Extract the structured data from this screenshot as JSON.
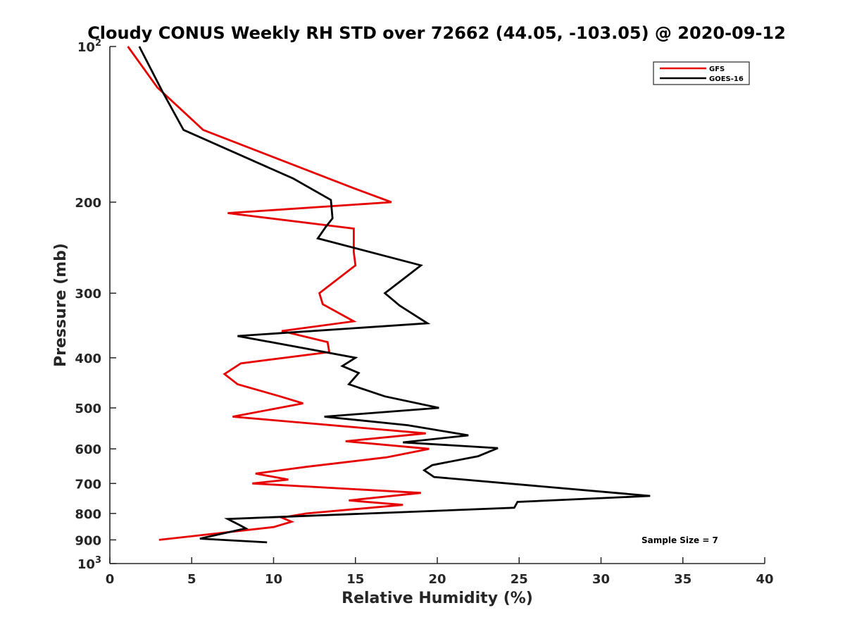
{
  "chart_data": {
    "type": "line",
    "title": "Cloudy CONUS Weekly RH STD over 72662 (44.05, -103.05) @ 2020-09-12",
    "xlabel": "Relative Humidity (%)",
    "ylabel": "Pressure (mb)",
    "xlim": [
      0,
      40
    ],
    "ylim": [
      100,
      1000
    ],
    "y_scale": "log",
    "y_reversed": true,
    "x_ticks": [
      "0",
      "5",
      "10",
      "15",
      "20",
      "25",
      "30",
      "35",
      "40"
    ],
    "y_ticks": [
      {
        "value": 100,
        "base": "10",
        "exp": "2"
      },
      {
        "value": 200,
        "label": "200"
      },
      {
        "value": 300,
        "label": "300"
      },
      {
        "value": 400,
        "label": "400"
      },
      {
        "value": 500,
        "label": "500"
      },
      {
        "value": 600,
        "label": "600"
      },
      {
        "value": 700,
        "label": "700"
      },
      {
        "value": 800,
        "label": "800"
      },
      {
        "value": 900,
        "label": "900"
      },
      {
        "value": 1000,
        "base": "10",
        "exp": "3"
      }
    ],
    "grid": false,
    "legend_position": "top-right",
    "annotation": "Sample Size = 7",
    "series": [
      {
        "name": "GFS",
        "color": "#e60000",
        "points": [
          [
            1.1,
            100
          ],
          [
            2.9,
            120
          ],
          [
            5.7,
            145
          ],
          [
            14.9,
            188
          ],
          [
            17.2,
            200
          ],
          [
            7.2,
            210
          ],
          [
            14.9,
            225
          ],
          [
            14.9,
            250
          ],
          [
            15.0,
            265
          ],
          [
            12.8,
            300
          ],
          [
            13.0,
            315
          ],
          [
            14.9,
            340
          ],
          [
            10.5,
            355
          ],
          [
            13.3,
            373
          ],
          [
            13.4,
            390
          ],
          [
            8.0,
            410
          ],
          [
            7.0,
            430
          ],
          [
            7.8,
            450
          ],
          [
            10.4,
            475
          ],
          [
            11.8,
            490
          ],
          [
            7.5,
            520
          ],
          [
            19.3,
            560
          ],
          [
            14.4,
            580
          ],
          [
            19.5,
            600
          ],
          [
            16.9,
            623
          ],
          [
            12.0,
            650
          ],
          [
            8.9,
            670
          ],
          [
            10.9,
            688
          ],
          [
            8.7,
            700
          ],
          [
            19.0,
            730
          ],
          [
            14.6,
            755
          ],
          [
            17.9,
            770
          ],
          [
            12.0,
            800
          ],
          [
            10.5,
            815
          ],
          [
            11.1,
            830
          ],
          [
            10.0,
            850
          ],
          [
            3.0,
            900
          ]
        ]
      },
      {
        "name": "GOES-16",
        "color": "#000000",
        "points": [
          [
            1.8,
            100
          ],
          [
            3.2,
            122
          ],
          [
            4.5,
            145
          ],
          [
            11.2,
            180
          ],
          [
            13.5,
            198
          ],
          [
            13.6,
            215
          ],
          [
            13.2,
            223
          ],
          [
            12.7,
            235
          ],
          [
            19.0,
            265
          ],
          [
            17.9,
            282
          ],
          [
            16.8,
            300
          ],
          [
            17.7,
            317
          ],
          [
            19.4,
            343
          ],
          [
            7.8,
            363
          ],
          [
            12.2,
            385
          ],
          [
            15.0,
            400
          ],
          [
            14.2,
            415
          ],
          [
            15.2,
            428
          ],
          [
            14.6,
            450
          ],
          [
            16.8,
            475
          ],
          [
            20.1,
            500
          ],
          [
            13.1,
            520
          ],
          [
            18.2,
            540
          ],
          [
            21.9,
            565
          ],
          [
            17.9,
            583
          ],
          [
            23.7,
            598
          ],
          [
            22.5,
            620
          ],
          [
            19.7,
            645
          ],
          [
            19.2,
            660
          ],
          [
            19.8,
            680
          ],
          [
            33.0,
            740
          ],
          [
            24.9,
            760
          ],
          [
            24.7,
            780
          ],
          [
            7.2,
            820
          ],
          [
            8.0,
            845
          ],
          [
            8.3,
            855
          ],
          [
            5.5,
            895
          ],
          [
            9.6,
            910
          ]
        ]
      }
    ]
  }
}
